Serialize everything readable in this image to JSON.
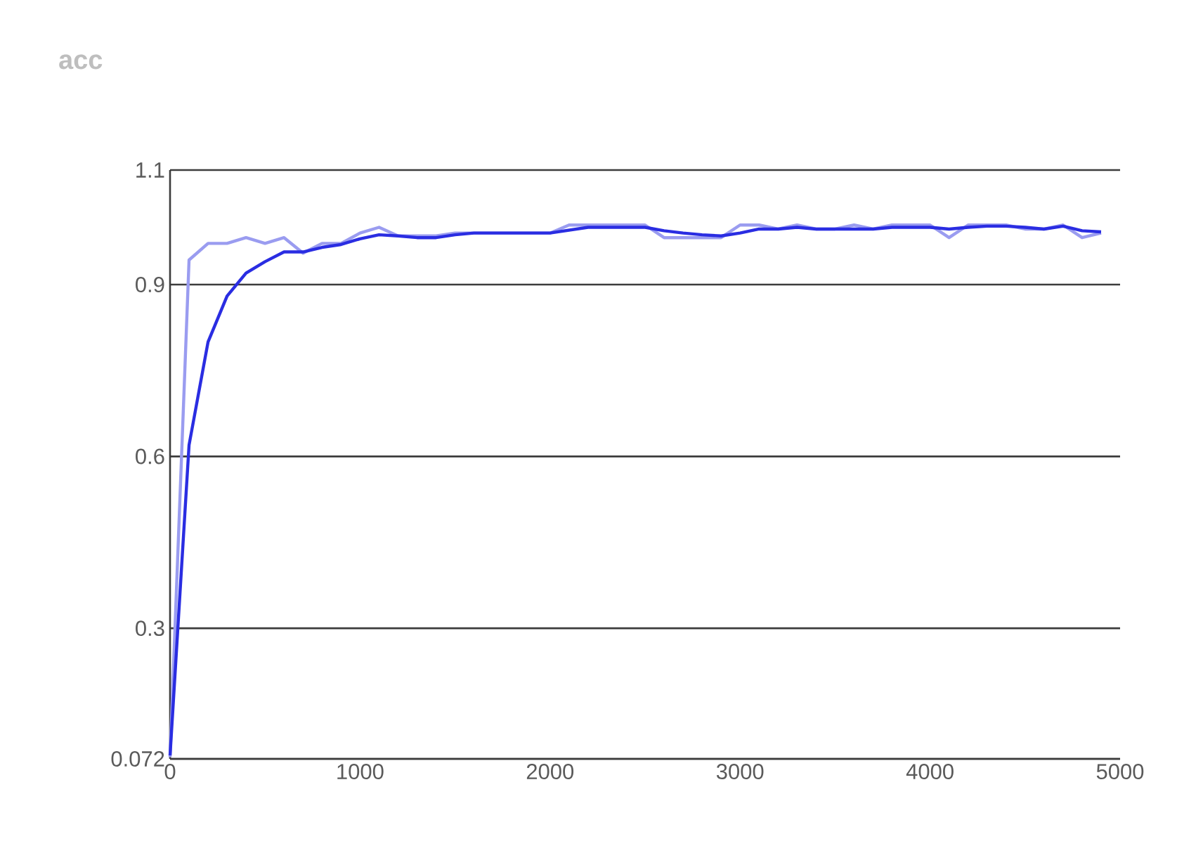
{
  "chart_data": {
    "type": "line",
    "title": "acc",
    "x": [
      0,
      100,
      200,
      300,
      400,
      500,
      600,
      700,
      800,
      900,
      1000,
      1100,
      1200,
      1300,
      1400,
      1500,
      1600,
      1700,
      1800,
      1900,
      2000,
      2100,
      2200,
      2300,
      2400,
      2500,
      2600,
      2700,
      2800,
      2900,
      3000,
      3100,
      3200,
      3300,
      3400,
      3500,
      3600,
      3700,
      3800,
      3900,
      4000,
      4100,
      4200,
      4300,
      4400,
      4500,
      4600,
      4700,
      4800,
      4900
    ],
    "series": [
      {
        "color": "#9a9cf0",
        "values": [
          0.075,
          0.943,
          0.972,
          0.972,
          0.982,
          0.972,
          0.982,
          0.955,
          0.972,
          0.972,
          0.99,
          1.0,
          0.985,
          0.985,
          0.985,
          0.99,
          0.99,
          0.99,
          0.99,
          0.99,
          0.99,
          1.004,
          1.004,
          1.004,
          1.004,
          1.004,
          0.982,
          0.982,
          0.982,
          0.982,
          1.004,
          1.004,
          0.997,
          1.004,
          0.997,
          0.997,
          1.004,
          0.997,
          1.004,
          1.004,
          1.004,
          0.982,
          1.004,
          1.004,
          1.004,
          0.997,
          0.997,
          1.004,
          0.982,
          0.99
        ]
      },
      {
        "color": "#2a2de2",
        "values": [
          0.078,
          0.62,
          0.8,
          0.88,
          0.92,
          0.94,
          0.957,
          0.957,
          0.965,
          0.97,
          0.98,
          0.987,
          0.985,
          0.982,
          0.982,
          0.987,
          0.99,
          0.99,
          0.99,
          0.99,
          0.99,
          0.995,
          1.0,
          1.0,
          1.0,
          1.0,
          0.994,
          0.99,
          0.987,
          0.985,
          0.99,
          0.997,
          0.997,
          1.0,
          0.997,
          0.997,
          0.997,
          0.997,
          1.0,
          1.0,
          1.0,
          0.997,
          1.0,
          1.002,
          1.002,
          1.0,
          0.997,
          1.002,
          0.994,
          0.992
        ]
      }
    ],
    "xlim": [
      0,
      5000
    ],
    "ylim": [
      0.072,
      1.1
    ],
    "xticks": [
      0,
      1000,
      2000,
      3000,
      4000,
      5000
    ],
    "yticks": [
      0.072,
      0.3,
      0.6,
      0.9,
      1.1
    ],
    "grid": "y",
    "marker": "none",
    "line_style": "solid"
  }
}
